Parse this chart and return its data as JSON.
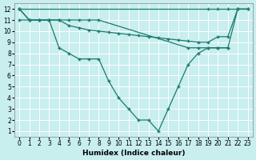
{
  "xlabel": "Humidex (Indice chaleur)",
  "bg_color": "#c8eeee",
  "grid_color": "#ffffff",
  "line_color": "#1a7a6e",
  "xlim": [
    -0.5,
    23.5
  ],
  "ylim": [
    0.5,
    12.5
  ],
  "xticks": [
    0,
    1,
    2,
    3,
    4,
    5,
    6,
    7,
    8,
    9,
    10,
    11,
    12,
    13,
    14,
    15,
    16,
    17,
    18,
    19,
    20,
    21,
    22,
    23
  ],
  "yticks": [
    1,
    2,
    3,
    4,
    5,
    6,
    7,
    8,
    9,
    10,
    11,
    12
  ],
  "line1_x": [
    0,
    19,
    20,
    21,
    22,
    23
  ],
  "line1_y": [
    12,
    12,
    12,
    12,
    12,
    12
  ],
  "line2_x": [
    0,
    1,
    2,
    3,
    4,
    5,
    6,
    7,
    8,
    9,
    10,
    11,
    12,
    13,
    14,
    15,
    16,
    17,
    18,
    19,
    20,
    21,
    22
  ],
  "line2_y": [
    12,
    11,
    11,
    11,
    11,
    10.5,
    10.3,
    10.1,
    10.0,
    9.9,
    9.8,
    9.7,
    9.6,
    9.5,
    9.4,
    9.3,
    9.2,
    9.1,
    9.0,
    9.0,
    9.5,
    9.5,
    12
  ],
  "line3_x": [
    0,
    1,
    2,
    3,
    4,
    5,
    6,
    7,
    8,
    17,
    18,
    19,
    20,
    21
  ],
  "line3_y": [
    11,
    11,
    11,
    11,
    11,
    11,
    11,
    11,
    11,
    8.5,
    8.5,
    8.5,
    8.5,
    8.5
  ],
  "line4_x": [
    0,
    1,
    2,
    3,
    4,
    5,
    6,
    7,
    8,
    9,
    10,
    11,
    12,
    13,
    14,
    15,
    16,
    17,
    18,
    19,
    20,
    21,
    22,
    23
  ],
  "line4_y": [
    12,
    11,
    11,
    11,
    8.5,
    8,
    7.5,
    7.5,
    7.5,
    5.5,
    4,
    3,
    2,
    2,
    1,
    3,
    5,
    7,
    8,
    8.5,
    8.5,
    8.5,
    12,
    12
  ],
  "marker": "+",
  "markersize": 3,
  "linewidth": 0.9,
  "tick_fontsize": 5.5,
  "xlabel_fontsize": 6.5
}
